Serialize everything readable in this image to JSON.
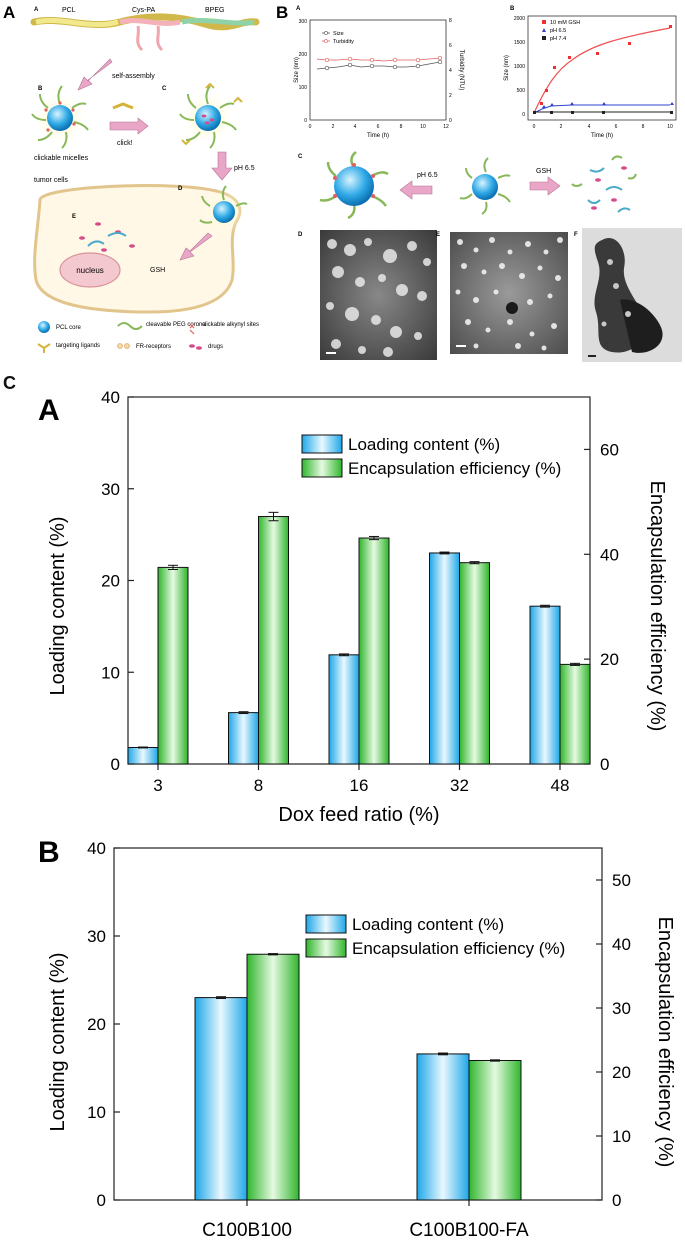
{
  "panel_labels": {
    "A": "A",
    "B": "B",
    "C": "C"
  },
  "schematic_a": {
    "sub_labels": [
      "A",
      "B",
      "C",
      "D",
      "E"
    ],
    "segments": [
      "PCL",
      "Cys-PA",
      "BPEG"
    ],
    "self_assembly": "self-assembly",
    "click": "click!",
    "clickable_micelles": "clickable micelles",
    "ph": "pH 6.5",
    "tumor_cells": "tumor cells",
    "gsh": "GSH",
    "nucleus": "nucleus",
    "legend": [
      "PCL core",
      "cleavable PEG corona",
      "clickable alkynyl sites",
      "targeting ligands",
      "FR-receptors",
      "drugs"
    ]
  },
  "figure_b": {
    "sub_labels": [
      "A",
      "B",
      "C",
      "D",
      "E",
      "F"
    ],
    "chart_a": {
      "legend": [
        "Size",
        "Turbidity"
      ],
      "xlabel": "Time (h)",
      "ylabel": "Size (nm)",
      "y2label": "Turbidity (NTU)",
      "xticks": [
        "0",
        "2",
        "4",
        "6",
        "8",
        "10",
        "12"
      ],
      "yticks": [
        "0",
        "100",
        "200",
        "300"
      ],
      "y2ticks": [
        "0",
        "2",
        "4",
        "6",
        "8"
      ]
    },
    "chart_b": {
      "legend": [
        "10 mM GSH",
        "pH 6.5",
        "pH 7.4"
      ],
      "xlabel": "Time (h)",
      "ylabel": "Size (nm)",
      "xticks": [
        "0",
        "2",
        "4",
        "6",
        "8",
        "10"
      ],
      "yticks": [
        "0",
        "500",
        "1000",
        "1500",
        "2000"
      ]
    },
    "ph": "pH 6.5",
    "gsh": "GSH"
  },
  "chart_data": [
    {
      "type": "bar",
      "panel": "A",
      "categories": [
        "3",
        "8",
        "16",
        "32",
        "48"
      ],
      "series": [
        {
          "name": "Loading content (%)",
          "axis": "left",
          "values": [
            1.8,
            5.6,
            11.9,
            23.0,
            17.2
          ],
          "errors": [
            0.05,
            0.1,
            0.1,
            0.1,
            0.1
          ]
        },
        {
          "name": "Encapsulation efficiency (%)",
          "axis": "right",
          "values": [
            37.5,
            47.2,
            43.1,
            38.4,
            19.0
          ],
          "errors": [
            0.4,
            0.8,
            0.3,
            0.2,
            0.2
          ]
        }
      ],
      "xlabel": "Dox feed ratio (%)",
      "ylabel": "Loading content (%)",
      "y2label": "Encapsulation efficiency (%)",
      "ylim": [
        0,
        40
      ],
      "y2lim": [
        0,
        70
      ],
      "yticks": [
        "0",
        "10",
        "20",
        "30",
        "40"
      ],
      "y2ticks": [
        "0",
        "20",
        "40",
        "60"
      ],
      "legend_position": "top-right"
    },
    {
      "type": "bar",
      "panel": "B",
      "categories": [
        "C100B100",
        "C100B100-FA"
      ],
      "series": [
        {
          "name": "Loading content (%)",
          "axis": "left",
          "values": [
            23.0,
            16.6
          ],
          "errors": [
            0.1,
            0.1
          ]
        },
        {
          "name": "Encapsulation efficiency (%)",
          "axis": "right",
          "values": [
            38.4,
            21.8
          ],
          "errors": [
            0.1,
            0.1
          ]
        }
      ],
      "ylabel": "Loading content (%)",
      "y2label": "Encapsulation efficiency (%)",
      "ylim": [
        0,
        40
      ],
      "y2lim": [
        0,
        55
      ],
      "yticks": [
        "0",
        "10",
        "20",
        "30",
        "40"
      ],
      "y2ticks": [
        "0",
        "10",
        "20",
        "30",
        "40",
        "50"
      ],
      "legend_position": "top-right"
    }
  ]
}
